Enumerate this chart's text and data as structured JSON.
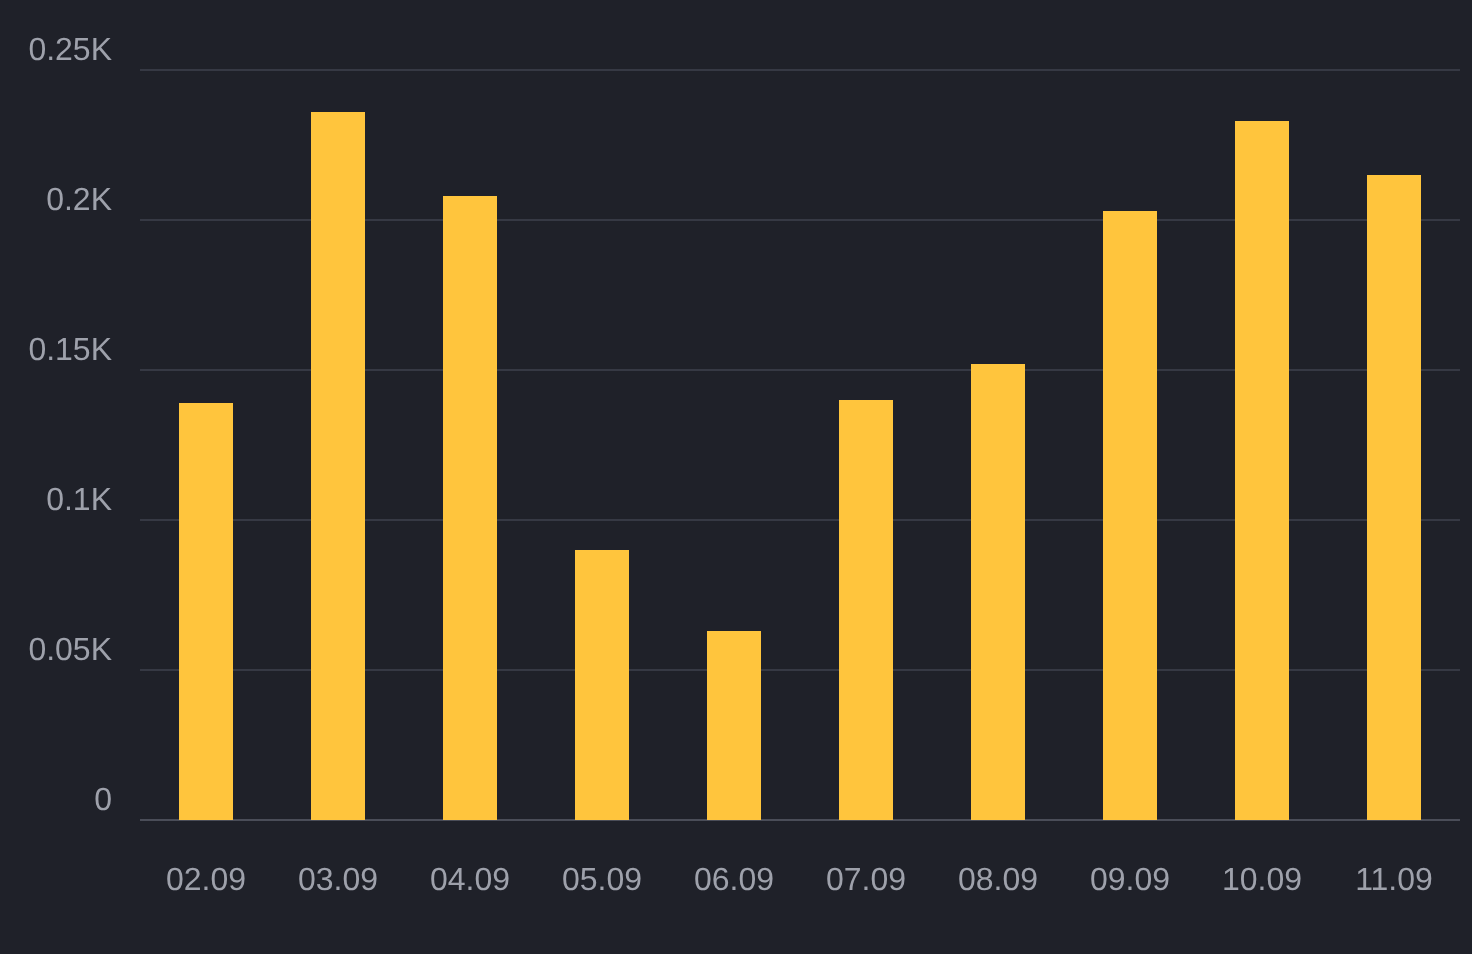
{
  "chart_data": {
    "type": "bar",
    "categories": [
      "02.09",
      "03.09",
      "04.09",
      "05.09",
      "06.09",
      "07.09",
      "08.09",
      "09.09",
      "10.09",
      "11.09"
    ],
    "values": [
      139,
      236,
      208,
      90,
      63,
      140,
      152,
      203,
      233,
      215
    ],
    "color": "#ffc53d",
    "ylim": [
      0,
      250
    ],
    "yticks": [
      {
        "value": 0,
        "label": "0"
      },
      {
        "value": 50,
        "label": "0.05K"
      },
      {
        "value": 100,
        "label": "0.1K"
      },
      {
        "value": 150,
        "label": "0.15K"
      },
      {
        "value": 200,
        "label": "0.2K"
      },
      {
        "value": 250,
        "label": "0.25K"
      }
    ],
    "grid": "y"
  }
}
